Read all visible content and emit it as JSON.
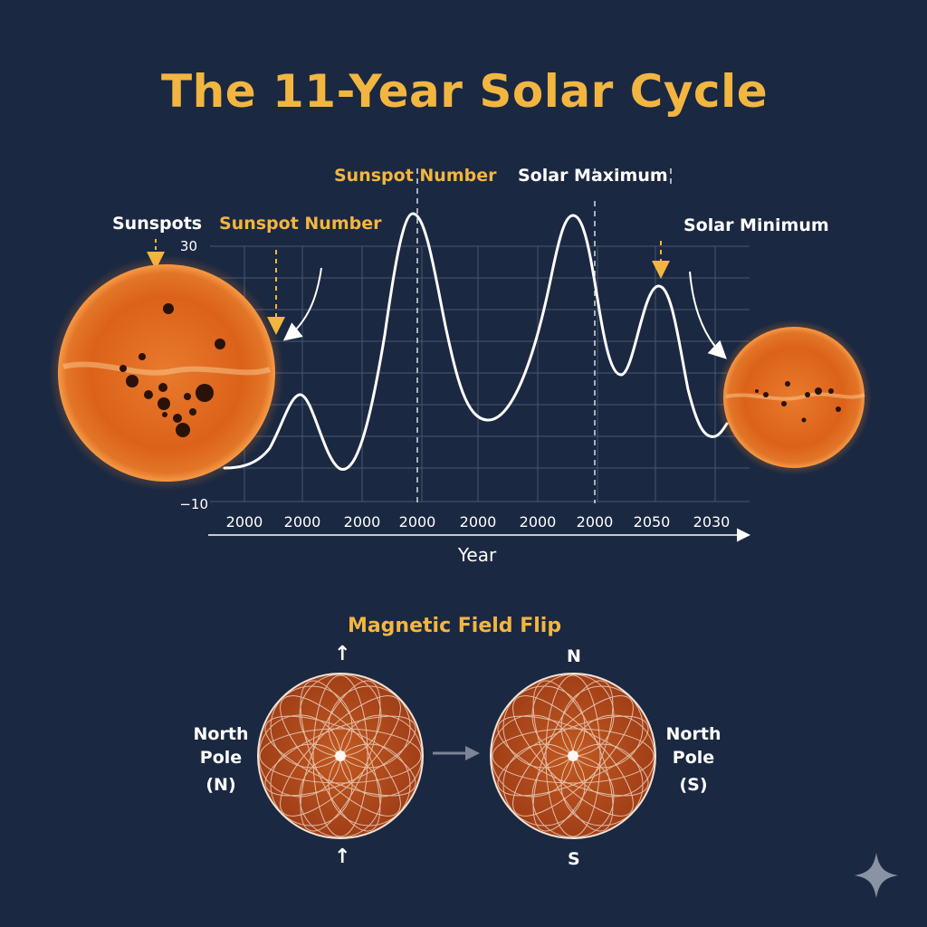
{
  "title": "The 11-Year Solar Cycle",
  "colors": {
    "background": "#1b2841",
    "accent": "#f2b640",
    "sun": "#e0651c"
  },
  "labels": {
    "sunspots": "Sunspots",
    "sunspot_number_left": "Sunspot Number",
    "sunspot_number_top": "Sunspot Number",
    "solar_maximum": "Solar Maximum",
    "solar_minimum": "Solar Minimum"
  },
  "axis": {
    "y_top": "30",
    "y_bottom": "−10",
    "x_label": "Year",
    "x_ticks": [
      "2000",
      "2000",
      "2000",
      "2000",
      "2000",
      "2000",
      "2000",
      "2050",
      "2030"
    ]
  },
  "magnetic": {
    "title": "Magnetic Field Flip",
    "left_label_line1": "North",
    "left_label_line2": "Pole",
    "left_label_line3": "(N)",
    "right_label_line1": "North",
    "right_label_line2": "Pole",
    "right_label_line3": "(S)",
    "right_top": "N",
    "right_bottom": "S",
    "left_top_arrow": "↑",
    "left_bottom_arrow": "↑"
  },
  "icons": {
    "sparkle": "four-point-star-icon",
    "flip_arrow": "arrow-right-icon"
  }
}
